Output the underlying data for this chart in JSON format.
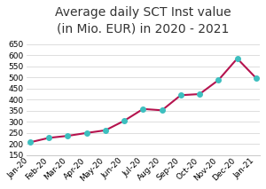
{
  "title": "Average daily SCT Inst value\n(in Mio. EUR) in 2020 - 2021",
  "x_labels": [
    "Jan-20",
    "Feb-20",
    "Mar-20",
    "Apr-20",
    "May-20",
    "Jun-20",
    "Jul-20",
    "Aug-20",
    "Sep-20",
    "Oct-20",
    "Nov-20",
    "Dec-20",
    "Jan-21"
  ],
  "plot_values": [
    208,
    228,
    237,
    250,
    262,
    305,
    358,
    352,
    420,
    425,
    488,
    585,
    497
  ],
  "ylim": [
    150,
    670
  ],
  "yticks": [
    150,
    200,
    250,
    300,
    350,
    400,
    450,
    500,
    550,
    600,
    650
  ],
  "line_color": "#b5134e",
  "marker_color": "#3dbfbf",
  "marker_style": "o",
  "marker_size": 4,
  "line_width": 1.5,
  "title_fontsize": 10,
  "tick_fontsize": 6.5,
  "background_color": "#ffffff",
  "grid_color": "#d8d8d8"
}
